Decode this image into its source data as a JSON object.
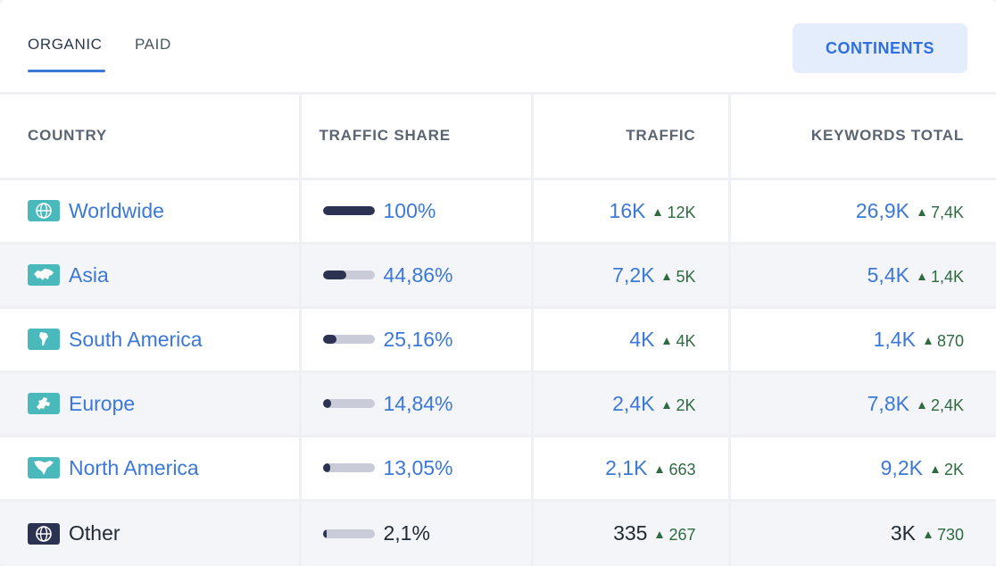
{
  "tabs": [
    {
      "label": "ORGANIC",
      "active": true
    },
    {
      "label": "PAID",
      "active": false
    }
  ],
  "continents_button": "CONTINENTS",
  "colors": {
    "link": "#3c78d8",
    "accent_button_bg": "#e3edfb",
    "bar_fill": "#2c3352",
    "delta_green": "#2d6b3f",
    "flag_teal": "#4ab9bc"
  },
  "table": {
    "headers": {
      "country": "COUNTRY",
      "traffic_share": "TRAFFIC SHARE",
      "traffic": "TRAFFIC",
      "keywords_total": "KEYWORDS TOTAL"
    },
    "rows": [
      {
        "icon": "globe-icon",
        "country": "Worldwide",
        "share_fraction": 1.0,
        "share": "100%",
        "traffic": "16K",
        "traffic_delta": "12K",
        "keywords": "26,9K",
        "keywords_delta": "7,4K",
        "link": true
      },
      {
        "icon": "asia-map-icon",
        "country": "Asia",
        "share_fraction": 0.4486,
        "share": "44,86%",
        "traffic": "7,2K",
        "traffic_delta": "5K",
        "keywords": "5,4K",
        "keywords_delta": "1,4K",
        "link": true
      },
      {
        "icon": "south-america-map-icon",
        "country": "South America",
        "share_fraction": 0.2516,
        "share": "25,16%",
        "traffic": "4K",
        "traffic_delta": "4K",
        "keywords": "1,4K",
        "keywords_delta": "870",
        "link": true
      },
      {
        "icon": "europe-map-icon",
        "country": "Europe",
        "share_fraction": 0.1484,
        "share": "14,84%",
        "traffic": "2,4K",
        "traffic_delta": "2K",
        "keywords": "7,8K",
        "keywords_delta": "2,4K",
        "link": true
      },
      {
        "icon": "north-america-map-icon",
        "country": "North America",
        "share_fraction": 0.1305,
        "share": "13,05%",
        "traffic": "2,1K",
        "traffic_delta": "663",
        "keywords": "9,2K",
        "keywords_delta": "2K",
        "link": true
      },
      {
        "icon": "globe-icon",
        "country": "Other",
        "share_fraction": 0.021,
        "share": "2,1%",
        "traffic": "335",
        "traffic_delta": "267",
        "keywords": "3K",
        "keywords_delta": "730",
        "link": false
      }
    ]
  }
}
